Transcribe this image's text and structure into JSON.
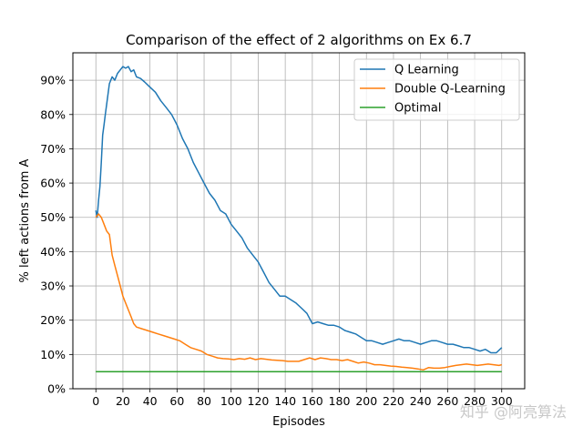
{
  "chart_data": {
    "type": "line",
    "title": "Comparison of the effect of 2 algorithms on Ex 6.7",
    "xlabel": "Episodes",
    "ylabel": "% left actions from A",
    "xlim": [
      -17,
      317
    ],
    "ylim": [
      0,
      0.98
    ],
    "xticks": [
      0,
      20,
      40,
      60,
      80,
      100,
      120,
      140,
      160,
      180,
      200,
      220,
      240,
      260,
      280,
      300
    ],
    "xtick_labels": [
      "0",
      "20",
      "40",
      "60",
      "80",
      "100",
      "120",
      "140",
      "160",
      "180",
      "200",
      "220",
      "240",
      "260",
      "280",
      "300"
    ],
    "yticks": [
      0,
      0.1,
      0.2,
      0.3,
      0.4,
      0.5,
      0.6,
      0.7,
      0.8,
      0.9
    ],
    "ytick_labels": [
      "0%",
      "10%",
      "20%",
      "30%",
      "40%",
      "50%",
      "60%",
      "70%",
      "80%",
      "90%"
    ],
    "grid": true,
    "legend_position": "upper-right",
    "series": [
      {
        "name": "Q Learning",
        "color": "#1f77b4",
        "x": [
          0,
          1,
          2,
          3,
          4,
          5,
          6,
          7,
          8,
          10,
          12,
          14,
          16,
          18,
          20,
          22,
          24,
          26,
          28,
          30,
          33,
          36,
          40,
          44,
          48,
          52,
          56,
          60,
          64,
          68,
          72,
          76,
          80,
          84,
          88,
          92,
          96,
          100,
          104,
          108,
          112,
          116,
          120,
          124,
          128,
          132,
          136,
          140,
          144,
          148,
          152,
          156,
          160,
          164,
          168,
          172,
          176,
          180,
          184,
          188,
          192,
          196,
          200,
          204,
          208,
          212,
          216,
          220,
          224,
          228,
          232,
          236,
          240,
          244,
          248,
          252,
          256,
          260,
          264,
          268,
          272,
          276,
          280,
          284,
          288,
          292,
          296,
          300
        ],
        "values": [
          0.52,
          0.5,
          0.55,
          0.59,
          0.66,
          0.74,
          0.77,
          0.8,
          0.83,
          0.89,
          0.91,
          0.9,
          0.92,
          0.93,
          0.94,
          0.935,
          0.94,
          0.925,
          0.93,
          0.91,
          0.905,
          0.895,
          0.88,
          0.865,
          0.84,
          0.82,
          0.8,
          0.77,
          0.73,
          0.7,
          0.66,
          0.63,
          0.6,
          0.57,
          0.55,
          0.52,
          0.51,
          0.48,
          0.46,
          0.44,
          0.41,
          0.39,
          0.37,
          0.34,
          0.31,
          0.29,
          0.27,
          0.27,
          0.26,
          0.25,
          0.235,
          0.22,
          0.19,
          0.195,
          0.19,
          0.185,
          0.185,
          0.18,
          0.17,
          0.165,
          0.16,
          0.15,
          0.14,
          0.14,
          0.135,
          0.13,
          0.135,
          0.14,
          0.145,
          0.14,
          0.14,
          0.135,
          0.13,
          0.135,
          0.14,
          0.14,
          0.135,
          0.13,
          0.13,
          0.125,
          0.12,
          0.12,
          0.115,
          0.11,
          0.115,
          0.105,
          0.105,
          0.12
        ]
      },
      {
        "name": "Double Q-Learning",
        "color": "#ff7f0e",
        "x": [
          0,
          2,
          4,
          6,
          8,
          10,
          12,
          14,
          16,
          18,
          20,
          22,
          24,
          26,
          28,
          30,
          34,
          38,
          42,
          46,
          50,
          54,
          58,
          62,
          66,
          70,
          74,
          78,
          82,
          86,
          90,
          94,
          98,
          102,
          106,
          110,
          114,
          118,
          122,
          126,
          130,
          134,
          138,
          142,
          146,
          150,
          154,
          158,
          162,
          166,
          170,
          174,
          178,
          182,
          186,
          190,
          194,
          198,
          202,
          206,
          210,
          214,
          218,
          222,
          226,
          230,
          234,
          238,
          242,
          246,
          250,
          254,
          258,
          262,
          266,
          270,
          274,
          278,
          282,
          286,
          290,
          294,
          298,
          300
        ],
        "values": [
          0.5,
          0.51,
          0.5,
          0.48,
          0.46,
          0.45,
          0.39,
          0.36,
          0.33,
          0.3,
          0.27,
          0.25,
          0.23,
          0.21,
          0.19,
          0.18,
          0.175,
          0.17,
          0.165,
          0.16,
          0.155,
          0.15,
          0.145,
          0.14,
          0.13,
          0.12,
          0.115,
          0.11,
          0.1,
          0.095,
          0.09,
          0.088,
          0.087,
          0.085,
          0.088,
          0.086,
          0.09,
          0.085,
          0.088,
          0.086,
          0.084,
          0.083,
          0.082,
          0.08,
          0.08,
          0.08,
          0.085,
          0.09,
          0.085,
          0.09,
          0.088,
          0.085,
          0.085,
          0.082,
          0.085,
          0.08,
          0.075,
          0.078,
          0.075,
          0.07,
          0.07,
          0.068,
          0.066,
          0.065,
          0.063,
          0.062,
          0.06,
          0.058,
          0.055,
          0.062,
          0.06,
          0.06,
          0.062,
          0.065,
          0.068,
          0.07,
          0.072,
          0.07,
          0.068,
          0.07,
          0.072,
          0.07,
          0.068,
          0.07
        ]
      },
      {
        "name": "Optimal",
        "color": "#2ca02c",
        "x": [
          0,
          300
        ],
        "values": [
          0.05,
          0.05
        ]
      }
    ]
  },
  "watermark": "知乎 @阿亮算法"
}
